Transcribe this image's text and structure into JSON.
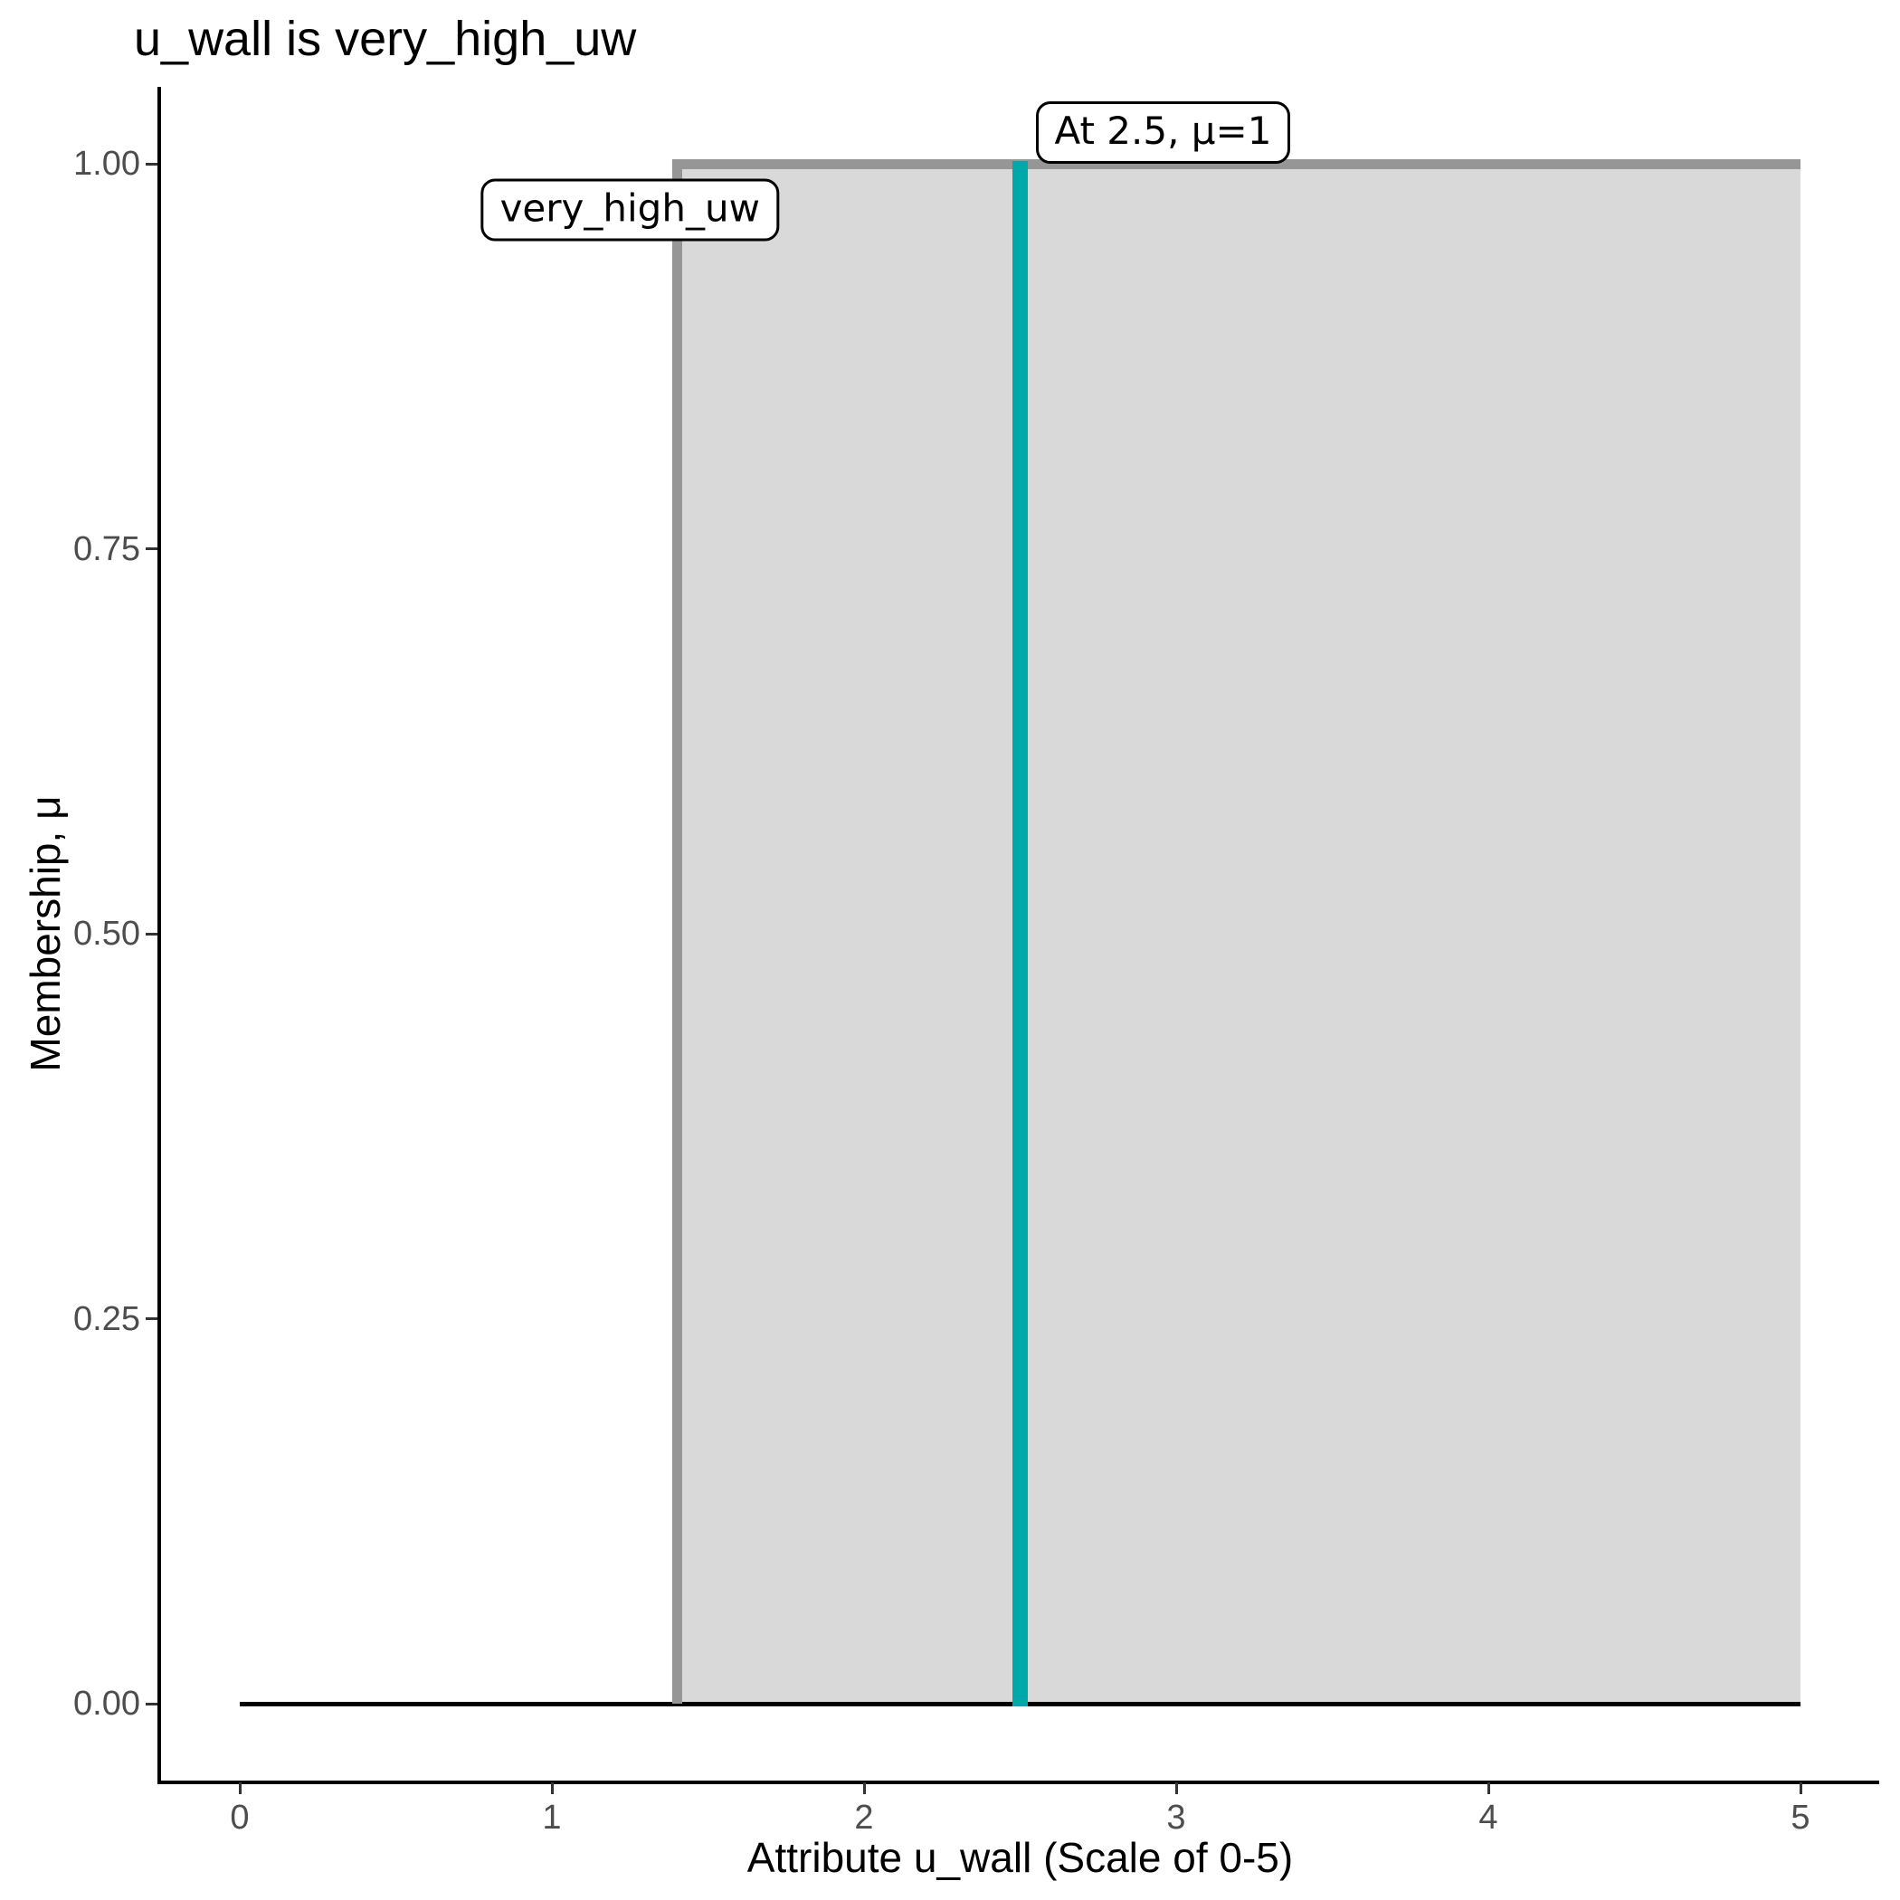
{
  "chart_data": {
    "type": "area",
    "title": "u_wall is very_high_uw",
    "xlabel": "Attribute u_wall (Scale of 0-5)",
    "ylabel": "Membership, μ",
    "xlim": [
      0,
      5
    ],
    "ylim": [
      0,
      1
    ],
    "x_ticks": [
      0,
      1,
      2,
      3,
      4,
      5
    ],
    "y_ticks": [
      {
        "value": 0,
        "label": "0.00"
      },
      {
        "value": 0.25,
        "label": "0.25"
      },
      {
        "value": 0.5,
        "label": "0.50"
      },
      {
        "value": 0.75,
        "label": "0.75"
      },
      {
        "value": 1,
        "label": "1.00"
      }
    ],
    "grid": false,
    "legend": "none",
    "series": [
      {
        "name": "very_high_uw membership function",
        "type": "filled-step",
        "points": [
          [
            1.4,
            0
          ],
          [
            1.4,
            1
          ],
          [
            5,
            1
          ]
        ],
        "fill": "#D9D9D9",
        "stroke": "#969696"
      },
      {
        "name": "zero baseline",
        "type": "line",
        "points": [
          [
            0,
            0
          ],
          [
            5,
            0
          ]
        ],
        "stroke": "#000000"
      },
      {
        "name": "crisp input value",
        "type": "vertical-segment",
        "x": 2.5,
        "y_from": 0,
        "y_to": 1,
        "stroke": "#00A9A9"
      }
    ],
    "annotations": [
      {
        "text": "At 2.5, μ=1",
        "x": 2.5,
        "y": 1.0,
        "anchor": "right-of-x-above"
      },
      {
        "text": "very_high_uw",
        "x": 1.25,
        "y": 0.97,
        "anchor": "center"
      }
    ],
    "colors": {
      "input_line": "#00A9A9",
      "step_line": "#969696",
      "region_fill": "#D9D9D9",
      "baseline": "#000000",
      "axis_line": "#000000",
      "tick_text": "#4D4D4D"
    }
  }
}
